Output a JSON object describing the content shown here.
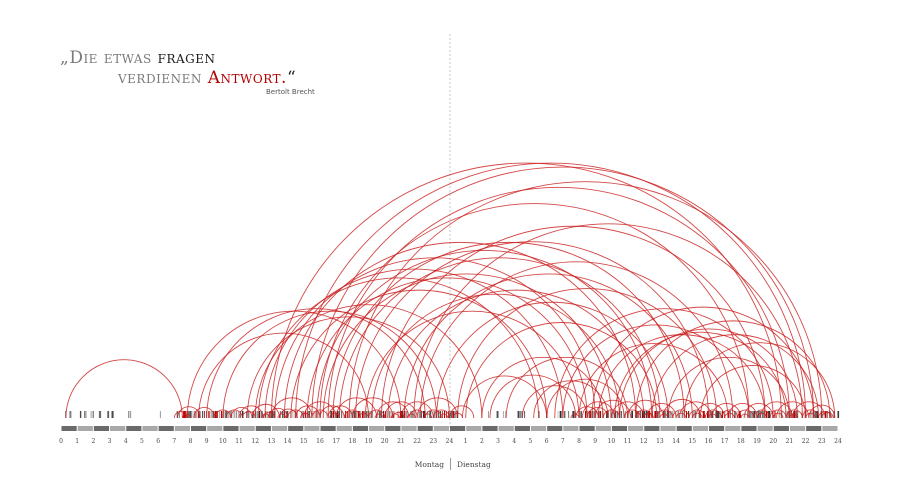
{
  "quote": {
    "open": "„",
    "word_die": "Die",
    "word_etwas": "etwas",
    "word_fragen": "fragen",
    "word_verdienen": "verdienen",
    "word_antwort": "Antwort.",
    "close": "“",
    "author": "Bertolt Brecht"
  },
  "days": {
    "monday": "Montag",
    "tuesday": "Dienstag"
  },
  "axis": {
    "monday_ticks": [
      "0",
      "1",
      "2",
      "3",
      "4",
      "5",
      "6",
      "7",
      "8",
      "9",
      "10",
      "11",
      "12",
      "13",
      "14",
      "15",
      "16",
      "17",
      "18",
      "19",
      "20",
      "21",
      "22",
      "23",
      "24"
    ],
    "tuesday_ticks": [
      "1",
      "2",
      "3",
      "4",
      "5",
      "6",
      "7",
      "8",
      "9",
      "10",
      "11",
      "12",
      "13",
      "14",
      "15",
      "16",
      "17",
      "18",
      "19",
      "20",
      "21",
      "22",
      "23",
      "24"
    ]
  },
  "colors": {
    "arc": "#c91a1a",
    "divider": "#b0b0b0",
    "text": "#1a1a1a",
    "accent": "#b30000"
  },
  "chart_data": {
    "type": "arc",
    "x_unit": "hour (0 = Montag 0:00, 48 = Dienstag 24:00)",
    "arcs": [
      [
        0.3,
        7.5
      ],
      [
        7.5,
        8.0
      ],
      [
        8.2,
        9.5
      ],
      [
        9.5,
        10.5
      ],
      [
        10.5,
        11.8
      ],
      [
        11.0,
        12.5
      ],
      [
        11.8,
        13.5
      ],
      [
        12.5,
        13.2
      ],
      [
        12.8,
        14.0
      ],
      [
        13.0,
        15.5
      ],
      [
        13.5,
        14.6
      ],
      [
        14.0,
        15.0
      ],
      [
        14.5,
        16.0
      ],
      [
        15.0,
        17.0
      ],
      [
        15.5,
        16.5
      ],
      [
        16.0,
        17.5
      ],
      [
        16.5,
        18.0
      ],
      [
        17.0,
        19.5
      ],
      [
        17.5,
        18.5
      ],
      [
        18.0,
        20.5
      ],
      [
        19.0,
        20.0
      ],
      [
        19.5,
        21.5
      ],
      [
        20.0,
        22.0
      ],
      [
        20.5,
        21.2
      ],
      [
        21.0,
        23.0
      ],
      [
        21.5,
        22.5
      ],
      [
        22.0,
        24.5
      ],
      [
        22.5,
        23.5
      ],
      [
        23.0,
        24.0
      ],
      [
        24.0,
        25.5
      ],
      [
        7.8,
        21.0
      ],
      [
        8.5,
        19.0
      ],
      [
        9.0,
        22.5
      ],
      [
        10.0,
        23.2
      ],
      [
        11.5,
        24.0
      ],
      [
        12.0,
        26.0
      ],
      [
        12.2,
        29.5
      ],
      [
        12.6,
        31.0
      ],
      [
        13.2,
        33.0
      ],
      [
        13.8,
        35.5
      ],
      [
        14.2,
        30.0
      ],
      [
        15.2,
        32.5
      ],
      [
        15.8,
        36.5
      ],
      [
        16.2,
        34.0
      ],
      [
        16.8,
        38.5
      ],
      [
        17.2,
        37.0
      ],
      [
        18.2,
        40.0
      ],
      [
        18.8,
        32.0
      ],
      [
        19.2,
        34.5
      ],
      [
        20.2,
        36.0
      ],
      [
        21.2,
        39.0
      ],
      [
        22.2,
        41.5
      ],
      [
        23.2,
        37.5
      ],
      [
        24.5,
        40.5
      ],
      [
        25.0,
        36.8
      ],
      [
        14.5,
        46.0
      ],
      [
        15.5,
        46.5
      ],
      [
        16.5,
        45.0
      ],
      [
        17.8,
        47.0
      ],
      [
        13.0,
        44.5
      ],
      [
        16.0,
        42.5
      ],
      [
        19.8,
        43.5
      ],
      [
        21.8,
        45.8
      ],
      [
        26.0,
        33.5
      ],
      [
        27.5,
        35.0
      ],
      [
        24.8,
        30.0
      ],
      [
        26.5,
        31.8
      ],
      [
        31.5,
        32.0
      ],
      [
        31.8,
        33.2
      ],
      [
        32.2,
        34.2
      ],
      [
        32.5,
        33.8
      ],
      [
        33.0,
        35.2
      ],
      [
        33.5,
        34.5
      ],
      [
        34.0,
        36.0
      ],
      [
        34.8,
        35.8
      ],
      [
        35.0,
        37.2
      ],
      [
        35.5,
        36.5
      ],
      [
        36.2,
        38.0
      ],
      [
        36.8,
        37.8
      ],
      [
        37.2,
        39.5
      ],
      [
        37.8,
        38.8
      ],
      [
        38.2,
        40.2
      ],
      [
        38.8,
        39.8
      ],
      [
        39.2,
        41.0
      ],
      [
        39.8,
        40.8
      ],
      [
        40.2,
        42.0
      ],
      [
        40.8,
        41.8
      ],
      [
        41.2,
        43.0
      ],
      [
        41.8,
        42.8
      ],
      [
        42.2,
        44.0
      ],
      [
        42.8,
        43.8
      ],
      [
        43.2,
        45.2
      ],
      [
        43.8,
        44.8
      ],
      [
        44.2,
        46.2
      ],
      [
        44.8,
        45.8
      ],
      [
        45.2,
        47.2
      ],
      [
        45.8,
        46.8
      ],
      [
        46.2,
        47.8
      ],
      [
        46.8,
        47.6
      ],
      [
        32.0,
        41.2
      ],
      [
        33.2,
        43.5
      ],
      [
        34.5,
        45.5
      ],
      [
        35.5,
        47.5
      ],
      [
        36.5,
        46.8
      ],
      [
        37.5,
        45.0
      ],
      [
        38.5,
        47.8
      ],
      [
        39.5,
        46.0
      ],
      [
        30.5,
        44.0
      ],
      [
        31.0,
        42.5
      ],
      [
        32.8,
        46.5
      ],
      [
        34.2,
        44.8
      ],
      [
        28.5,
        32.5
      ],
      [
        29.2,
        33.8
      ],
      [
        30.0,
        34.8
      ],
      [
        7.0,
        7.8
      ],
      [
        7.2,
        8.6
      ],
      [
        10.2,
        11.2
      ],
      [
        11.2,
        12.0
      ],
      [
        12.4,
        12.9
      ],
      [
        13.4,
        13.9
      ],
      [
        14.8,
        15.4
      ],
      [
        16.6,
        17.2
      ],
      [
        18.4,
        19.0
      ],
      [
        19.4,
        19.9
      ],
      [
        20.4,
        20.9
      ],
      [
        21.4,
        21.9
      ],
      [
        22.4,
        22.9
      ],
      [
        23.4,
        23.9
      ],
      [
        24.2,
        24.8
      ],
      [
        36.0,
        36.6
      ],
      [
        37.0,
        37.5
      ],
      [
        38.0,
        38.6
      ],
      [
        39.0,
        39.6
      ],
      [
        40.0,
        40.5
      ],
      [
        41.0,
        41.6
      ],
      [
        42.0,
        42.5
      ],
      [
        43.0,
        43.6
      ],
      [
        44.0,
        44.6
      ],
      [
        45.0,
        45.5
      ],
      [
        46.0,
        46.6
      ],
      [
        47.0,
        47.7
      ]
    ]
  }
}
